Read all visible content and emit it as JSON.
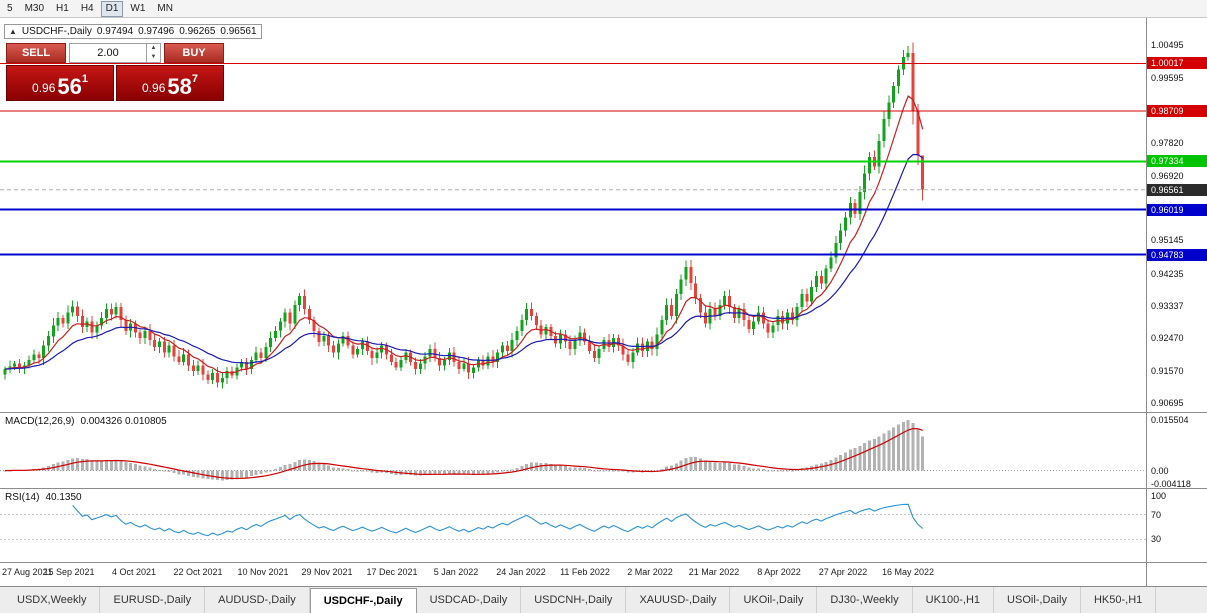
{
  "timeframes": [
    {
      "label": "5",
      "active": false
    },
    {
      "label": "M30",
      "active": false
    },
    {
      "label": "H1",
      "active": false
    },
    {
      "label": "H4",
      "active": false
    },
    {
      "label": "D1",
      "active": true
    },
    {
      "label": "W1",
      "active": false
    },
    {
      "label": "MN",
      "active": false
    }
  ],
  "window": {
    "collapse_icon": "▲",
    "symbol": "USDCHF-,Daily",
    "open": "0.97494",
    "high": "0.97496",
    "low": "0.96265",
    "close": "0.96561"
  },
  "trade_panel": {
    "sell_label": "SELL",
    "buy_label": "BUY",
    "volume": "2.00",
    "spin_up": "▲",
    "spin_down": "▼",
    "sell_price_main": "0.96",
    "sell_price_big": "56",
    "sell_price_sup": "1",
    "buy_price_main": "0.96",
    "buy_price_big": "58",
    "buy_price_sup": "7"
  },
  "price_axis": [
    {
      "text": "1.00495",
      "value": 1.00495
    },
    {
      "text": "1.00017",
      "value": 1.00017,
      "color": "#d40000"
    },
    {
      "text": "0.99595",
      "value": 0.99595
    },
    {
      "text": "0.98709",
      "value": 0.98709,
      "color": "#d40000"
    },
    {
      "text": "0.97820",
      "value": 0.9782
    },
    {
      "text": "0.97334",
      "value": 0.97334,
      "color": "#00c400"
    },
    {
      "text": "0.96920",
      "value": 0.9692
    },
    {
      "text": "0.96561",
      "value": 0.96561,
      "color": "#2b2b2b"
    },
    {
      "text": "0.96019",
      "value": 0.96019,
      "color": "#0000cc"
    },
    {
      "text": "0.95145",
      "value": 0.95145
    },
    {
      "text": "0.94783",
      "value": 0.94783,
      "color": "#0000cc"
    },
    {
      "text": "0.94235",
      "value": 0.94235
    },
    {
      "text": "0.93337",
      "value": 0.93337
    },
    {
      "text": "0.92470",
      "value": 0.9247
    },
    {
      "text": "0.91570",
      "value": 0.9157
    },
    {
      "text": "0.90695",
      "value": 0.90695
    }
  ],
  "hlines": [
    {
      "value": 1.00017,
      "color": "#d40000",
      "width": 1
    },
    {
      "value": 0.98709,
      "color": "#d40000",
      "width": 1
    },
    {
      "value": 0.97334,
      "color": "#00d200",
      "width": 2
    },
    {
      "value": 0.96019,
      "color": "#0000cc",
      "width": 2
    },
    {
      "value": 0.94783,
      "color": "#0000cc",
      "width": 2
    }
  ],
  "indicators": {
    "macd": {
      "label": "MACD(12,26,9)",
      "values": "0.004326 0.010805",
      "axis": [
        {
          "text": "0.015504",
          "value": 0.015504
        },
        {
          "text": "0.00",
          "value": 0
        },
        {
          "text": "-0.004118",
          "value": -0.004118
        }
      ]
    },
    "rsi": {
      "label": "RSI(14)",
      "value": "40.1350",
      "axis": [
        {
          "text": "100",
          "value": 100
        },
        {
          "text": "70",
          "value": 70
        },
        {
          "text": "30",
          "value": 30
        }
      ],
      "levels": [
        70,
        30
      ]
    }
  },
  "dates": [
    "27 Aug 2021",
    "15 Sep 2021",
    "4 Oct 2021",
    "22 Oct 2021",
    "10 Nov 2021",
    "29 Nov 2021",
    "17 Dec 2021",
    "5 Jan 2022",
    "24 Jan 2022",
    "11 Feb 2022",
    "2 Mar 2022",
    "21 Mar 2022",
    "8 Apr 2022",
    "27 Apr 2022",
    "16 May 2022"
  ],
  "tabs": [
    {
      "label": "USDX,Weekly",
      "active": false
    },
    {
      "label": "EURUSD-,Daily",
      "active": false
    },
    {
      "label": "AUDUSD-,Daily",
      "active": false
    },
    {
      "label": "USDCHF-,Daily",
      "active": true
    },
    {
      "label": "USDCAD-,Daily",
      "active": false
    },
    {
      "label": "USDCNH-,Daily",
      "active": false
    },
    {
      "label": "XAUUSD-,Daily",
      "active": false
    },
    {
      "label": "UKOil-,Daily",
      "active": false
    },
    {
      "label": "DJ30-,Weekly",
      "active": false
    },
    {
      "label": "UK100-,H1",
      "active": false
    },
    {
      "label": "USOil-,Daily",
      "active": false
    },
    {
      "label": "HK50-,H1",
      "active": false
    }
  ],
  "colors": {
    "candle_up": "#12a31c",
    "candle_down": "#e8413a",
    "ma_fast": "#c81f1f",
    "ma_slow": "#1a1ab4",
    "macd_hist": "#b2b2b2",
    "macd_signal": "#cc0000",
    "rsi_line": "#2a92d8"
  },
  "chart_data": {
    "type": "candlestick",
    "symbol": "USDCHF-",
    "timeframe": "Daily",
    "title": "USDCHF-,Daily",
    "y_range": [
      0.90695,
      1.00495
    ],
    "x_labels": [
      "27 Aug 2021",
      "15 Sep 2021",
      "4 Oct 2021",
      "22 Oct 2021",
      "10 Nov 2021",
      "29 Nov 2021",
      "17 Dec 2021",
      "5 Jan 2022",
      "24 Jan 2022",
      "11 Feb 2022",
      "2 Mar 2022",
      "21 Mar 2022",
      "8 Apr 2022",
      "27 Apr 2022",
      "16 May 2022"
    ],
    "levels": [
      1.00017,
      0.98709,
      0.97334,
      0.96019,
      0.94783
    ],
    "ohlc_last": {
      "open": 0.97494,
      "high": 0.97496,
      "low": 0.96265,
      "close": 0.96561
    },
    "first_open": 0.915,
    "closes": [
      0.9165,
      0.9172,
      0.918,
      0.9168,
      0.9175,
      0.919,
      0.9205,
      0.9195,
      0.923,
      0.9255,
      0.9285,
      0.9305,
      0.929,
      0.932,
      0.9337,
      0.931,
      0.928,
      0.9295,
      0.9265,
      0.9285,
      0.9305,
      0.933,
      0.9315,
      0.9335,
      0.93,
      0.927,
      0.929,
      0.9265,
      0.925,
      0.927,
      0.9245,
      0.9225,
      0.924,
      0.921,
      0.923,
      0.92,
      0.9185,
      0.9205,
      0.9175,
      0.916,
      0.9175,
      0.915,
      0.9135,
      0.9155,
      0.9128,
      0.914,
      0.916,
      0.9148,
      0.917,
      0.9185,
      0.9165,
      0.919,
      0.921,
      0.9195,
      0.9225,
      0.925,
      0.927,
      0.9295,
      0.932,
      0.929,
      0.934,
      0.9365,
      0.933,
      0.93,
      0.927,
      0.924,
      0.9255,
      0.923,
      0.921,
      0.9235,
      0.9255,
      0.923,
      0.9205,
      0.922,
      0.924,
      0.9215,
      0.9195,
      0.921,
      0.923,
      0.9205,
      0.9185,
      0.917,
      0.919,
      0.921,
      0.9185,
      0.9165,
      0.918,
      0.92,
      0.922,
      0.9195,
      0.9175,
      0.919,
      0.921,
      0.9185,
      0.9165,
      0.918,
      0.9155,
      0.917,
      0.919,
      0.9175,
      0.92,
      0.9185,
      0.921,
      0.923,
      0.9215,
      0.9245,
      0.927,
      0.93,
      0.933,
      0.931,
      0.9285,
      0.926,
      0.928,
      0.9255,
      0.9235,
      0.926,
      0.924,
      0.922,
      0.9245,
      0.9265,
      0.924,
      0.9215,
      0.9195,
      0.922,
      0.9245,
      0.9225,
      0.925,
      0.923,
      0.9205,
      0.9185,
      0.921,
      0.9235,
      0.9215,
      0.924,
      0.922,
      0.926,
      0.93,
      0.934,
      0.931,
      0.937,
      0.941,
      0.9445,
      0.94,
      0.936,
      0.932,
      0.929,
      0.933,
      0.931,
      0.934,
      0.9365,
      0.9335,
      0.9305,
      0.933,
      0.93,
      0.9275,
      0.9295,
      0.932,
      0.929,
      0.9265,
      0.9285,
      0.931,
      0.929,
      0.932,
      0.93,
      0.9335,
      0.937,
      0.935,
      0.939,
      0.942,
      0.94,
      0.944,
      0.947,
      0.951,
      0.9545,
      0.958,
      0.962,
      0.959,
      0.965,
      0.97,
      0.9745,
      0.972,
      0.979,
      0.985,
      0.9895,
      0.994,
      0.9985,
      1.002,
      1.003,
      0.987,
      0.97494,
      0.96561
    ],
    "overrides": {
      "187": {
        "high": 1.00495
      },
      "190": {
        "open": 0.97494,
        "high": 0.97496,
        "low": 0.96265,
        "close": 0.96561
      }
    }
  }
}
